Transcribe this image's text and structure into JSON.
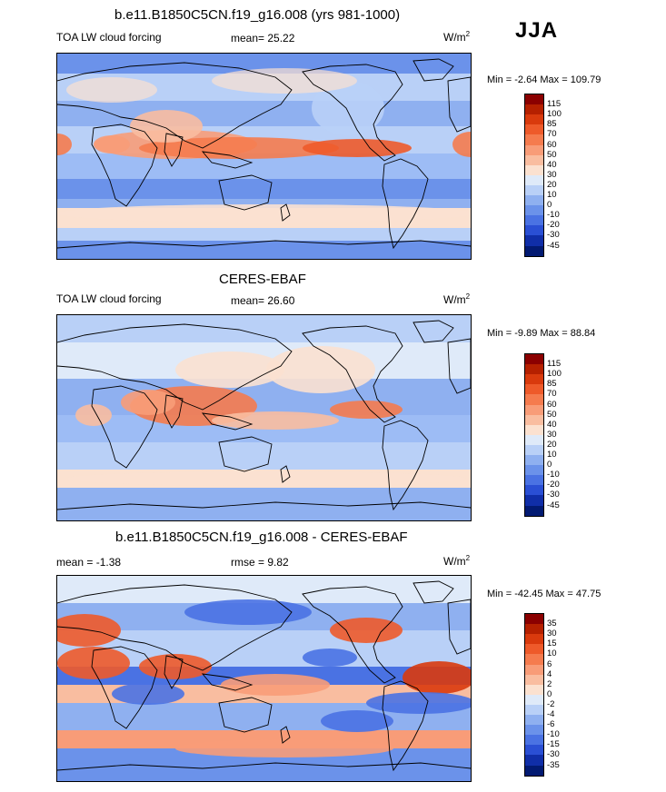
{
  "season": "JJA",
  "colors": {
    "ocean_cool": "#4d7ee6",
    "ocean_mid": "#9dbcf5",
    "warm": "#f4d5c0",
    "hot": "#e8502a",
    "coast": "#000000"
  },
  "chart_data": [
    {
      "type": "heatmap",
      "title": "b.e11.B1850C5CN.f19_g16.008 (yrs 981-1000)",
      "left_label": "TOA LW cloud forcing",
      "mean_label": "mean=  25.22",
      "units_label": "W/m",
      "units_sup": "2",
      "minmax": "Min =  -2.64 Max = 109.79",
      "colorbar_levels": [
        "115",
        "100",
        "85",
        "70",
        "60",
        "50",
        "40",
        "30",
        "20",
        "10",
        "0",
        "-10",
        "-20",
        "-30",
        "-45"
      ],
      "colorbar_colors": [
        "#8b0000",
        "#b52000",
        "#d93a0d",
        "#ee5a2a",
        "#f57b4e",
        "#f89c78",
        "#f9bda0",
        "#fbe1d0",
        "#dfeaf9",
        "#b9d0f7",
        "#8fb0f0",
        "#6b92ea",
        "#4a72e3",
        "#2a4fd4",
        "#102ea8",
        "#021a72"
      ]
    },
    {
      "type": "heatmap",
      "title": "CERES-EBAF",
      "left_label": "TOA LW cloud forcing",
      "mean_label": "mean=  26.60",
      "units_label": "W/m",
      "units_sup": "2",
      "minmax": "Min =  -9.89 Max =  88.84",
      "colorbar_levels": [
        "115",
        "100",
        "85",
        "70",
        "60",
        "50",
        "40",
        "30",
        "20",
        "10",
        "0",
        "-10",
        "-20",
        "-30",
        "-45"
      ],
      "colorbar_colors": [
        "#8b0000",
        "#b52000",
        "#d93a0d",
        "#ee5a2a",
        "#f57b4e",
        "#f89c78",
        "#f9bda0",
        "#fbe1d0",
        "#dfeaf9",
        "#b9d0f7",
        "#8fb0f0",
        "#6b92ea",
        "#4a72e3",
        "#2a4fd4",
        "#102ea8",
        "#021a72"
      ]
    },
    {
      "type": "heatmap",
      "title": "b.e11.B1850C5CN.f19_g16.008 - CERES-EBAF",
      "left_label": "mean =  -1.38",
      "mean_label": "rmse =   9.82",
      "units_label": "W/m",
      "units_sup": "2",
      "minmax": "Min = -42.45 Max =  47.75",
      "colorbar_levels": [
        "35",
        "30",
        "15",
        "10",
        "6",
        "4",
        "2",
        "0",
        "-2",
        "-4",
        "-6",
        "-10",
        "-15",
        "-30",
        "-35"
      ],
      "colorbar_colors": [
        "#8b0000",
        "#b52000",
        "#d93a0d",
        "#ee5a2a",
        "#f57b4e",
        "#f89c78",
        "#f9bda0",
        "#fbe1d0",
        "#dfeaf9",
        "#b9d0f7",
        "#8fb0f0",
        "#6b92ea",
        "#4a72e3",
        "#2a4fd4",
        "#102ea8",
        "#021a72"
      ]
    }
  ]
}
